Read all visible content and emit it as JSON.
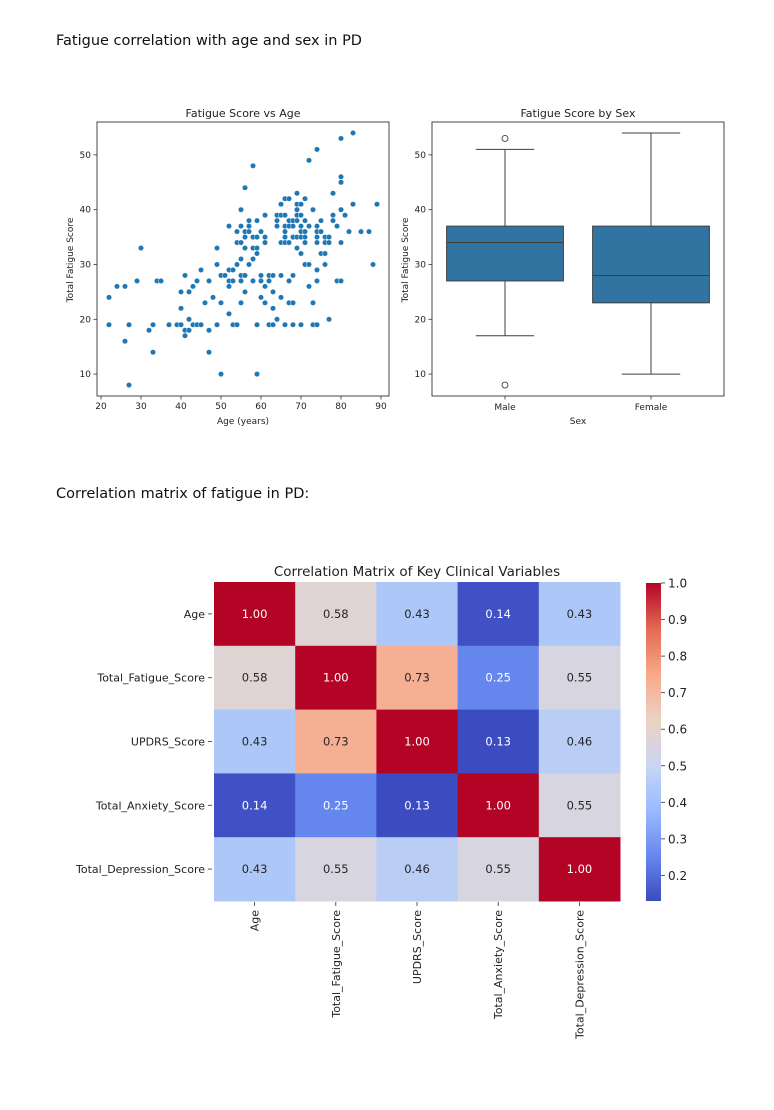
{
  "document": {
    "heading1": "Fatigue correlation with age and sex in PD",
    "heading2": "Correlation matrix of fatigue in PD:"
  },
  "chart_data": [
    {
      "type": "scatter",
      "title": "Fatigue Score vs Age",
      "xlabel": "Age (years)",
      "ylabel": "Total Fatigue Score",
      "xlim": [
        19,
        92
      ],
      "ylim": [
        6,
        56
      ],
      "xticks": [
        20,
        30,
        40,
        50,
        60,
        70,
        80,
        90
      ],
      "yticks": [
        10,
        20,
        30,
        40,
        50
      ],
      "color": "#1f77b4",
      "grid": false,
      "points": [
        [
          22,
          24
        ],
        [
          22,
          19
        ],
        [
          24,
          26
        ],
        [
          26,
          26
        ],
        [
          26,
          16
        ],
        [
          27,
          19
        ],
        [
          27,
          8
        ],
        [
          29,
          27
        ],
        [
          30,
          33
        ],
        [
          32,
          18
        ],
        [
          33,
          19
        ],
        [
          33,
          14
        ],
        [
          34,
          27
        ],
        [
          35,
          27
        ],
        [
          37,
          19
        ],
        [
          39,
          19
        ],
        [
          40,
          25
        ],
        [
          40,
          22
        ],
        [
          40,
          19
        ],
        [
          41,
          28
        ],
        [
          41,
          18
        ],
        [
          41,
          17
        ],
        [
          42,
          25
        ],
        [
          42,
          20
        ],
        [
          42,
          18
        ],
        [
          43,
          26
        ],
        [
          43,
          19
        ],
        [
          44,
          27
        ],
        [
          44,
          19
        ],
        [
          45,
          29
        ],
        [
          45,
          19
        ],
        [
          46,
          23
        ],
        [
          47,
          27
        ],
        [
          47,
          18
        ],
        [
          47,
          14
        ],
        [
          48,
          24
        ],
        [
          49,
          33
        ],
        [
          49,
          30
        ],
        [
          49,
          19
        ],
        [
          50,
          28
        ],
        [
          50,
          23
        ],
        [
          50,
          10
        ],
        [
          51,
          28
        ],
        [
          52,
          37
        ],
        [
          52,
          29
        ],
        [
          52,
          27
        ],
        [
          52,
          26
        ],
        [
          52,
          21
        ],
        [
          53,
          29
        ],
        [
          53,
          27
        ],
        [
          53,
          19
        ],
        [
          54,
          36
        ],
        [
          54,
          34
        ],
        [
          54,
          30
        ],
        [
          54,
          19
        ],
        [
          55,
          40
        ],
        [
          55,
          37
        ],
        [
          55,
          34
        ],
        [
          55,
          31
        ],
        [
          55,
          28
        ],
        [
          55,
          27
        ],
        [
          55,
          23
        ],
        [
          56,
          44
        ],
        [
          56,
          36
        ],
        [
          56,
          35
        ],
        [
          56,
          33
        ],
        [
          56,
          28
        ],
        [
          56,
          25
        ],
        [
          57,
          38
        ],
        [
          57,
          37
        ],
        [
          57,
          36
        ],
        [
          57,
          30
        ],
        [
          58,
          48
        ],
        [
          58,
          35
        ],
        [
          58,
          33
        ],
        [
          58,
          31
        ],
        [
          58,
          27
        ],
        [
          59,
          38
        ],
        [
          59,
          35
        ],
        [
          59,
          33
        ],
        [
          59,
          32
        ],
        [
          59,
          19
        ],
        [
          59,
          10
        ],
        [
          60,
          36
        ],
        [
          60,
          28
        ],
        [
          60,
          27
        ],
        [
          60,
          24
        ],
        [
          61,
          39
        ],
        [
          61,
          35
        ],
        [
          61,
          34
        ],
        [
          61,
          26
        ],
        [
          61,
          23
        ],
        [
          62,
          28
        ],
        [
          62,
          27
        ],
        [
          62,
          19
        ],
        [
          63,
          28
        ],
        [
          63,
          25
        ],
        [
          63,
          22
        ],
        [
          63,
          19
        ],
        [
          64,
          39
        ],
        [
          64,
          38
        ],
        [
          64,
          37
        ],
        [
          64,
          20
        ],
        [
          65,
          41
        ],
        [
          65,
          39
        ],
        [
          65,
          34
        ],
        [
          65,
          28
        ],
        [
          65,
          24
        ],
        [
          66,
          42
        ],
        [
          66,
          39
        ],
        [
          66,
          37
        ],
        [
          66,
          36
        ],
        [
          66,
          35
        ],
        [
          66,
          34
        ],
        [
          66,
          19
        ],
        [
          67,
          42
        ],
        [
          67,
          38
        ],
        [
          67,
          37
        ],
        [
          67,
          34
        ],
        [
          67,
          27
        ],
        [
          67,
          23
        ],
        [
          68,
          38
        ],
        [
          68,
          37
        ],
        [
          68,
          35
        ],
        [
          68,
          28
        ],
        [
          68,
          23
        ],
        [
          68,
          19
        ],
        [
          69,
          43
        ],
        [
          69,
          41
        ],
        [
          69,
          40
        ],
        [
          69,
          39
        ],
        [
          69,
          38
        ],
        [
          69,
          35
        ],
        [
          69,
          33
        ],
        [
          70,
          41
        ],
        [
          70,
          39
        ],
        [
          70,
          37
        ],
        [
          70,
          36
        ],
        [
          70,
          35
        ],
        [
          70,
          32
        ],
        [
          70,
          19
        ],
        [
          71,
          42
        ],
        [
          71,
          38
        ],
        [
          71,
          36
        ],
        [
          71,
          35
        ],
        [
          71,
          34
        ],
        [
          71,
          30
        ],
        [
          72,
          49
        ],
        [
          72,
          37
        ],
        [
          72,
          30
        ],
        [
          72,
          26
        ],
        [
          73,
          40
        ],
        [
          73,
          23
        ],
        [
          73,
          19
        ],
        [
          74,
          51
        ],
        [
          74,
          37
        ],
        [
          74,
          36
        ],
        [
          74,
          35
        ],
        [
          74,
          34
        ],
        [
          74,
          29
        ],
        [
          74,
          27
        ],
        [
          74,
          19
        ],
        [
          75,
          38
        ],
        [
          75,
          36
        ],
        [
          75,
          32
        ],
        [
          76,
          35
        ],
        [
          76,
          34
        ],
        [
          76,
          32
        ],
        [
          76,
          30
        ],
        [
          77,
          35
        ],
        [
          77,
          34
        ],
        [
          77,
          20
        ],
        [
          78,
          43
        ],
        [
          78,
          39
        ],
        [
          78,
          38
        ],
        [
          79,
          37
        ],
        [
          79,
          27
        ],
        [
          80,
          53
        ],
        [
          80,
          46
        ],
        [
          80,
          45
        ],
        [
          80,
          40
        ],
        [
          80,
          34
        ],
        [
          80,
          27
        ],
        [
          81,
          39
        ],
        [
          82,
          36
        ],
        [
          83,
          54
        ],
        [
          83,
          41
        ],
        [
          85,
          36
        ],
        [
          87,
          36
        ],
        [
          88,
          30
        ],
        [
          89,
          41
        ]
      ]
    },
    {
      "type": "box",
      "title": "Fatigue Score by Sex",
      "xlabel": "Sex",
      "ylabel": "Total Fatigue Score",
      "ylim": [
        6,
        56
      ],
      "yticks": [
        10,
        20,
        30,
        40,
        50
      ],
      "color": "#3274a1",
      "categories": [
        "Male",
        "Female"
      ],
      "boxes": [
        {
          "label": "Male",
          "whisker_low": 17,
          "q1": 27,
          "median": 34,
          "q3": 37,
          "whisker_high": 51,
          "outliers": [
            53,
            8
          ]
        },
        {
          "label": "Female",
          "whisker_low": 10,
          "q1": 23,
          "median": 28,
          "q3": 37,
          "whisker_high": 54,
          "outliers": []
        }
      ]
    },
    {
      "type": "heatmap",
      "title": "Correlation Matrix of Key Clinical Variables",
      "row_labels": [
        "Age",
        "Total_Fatigue_Score",
        "UPDRS_Score",
        "Total_Anxiety_Score",
        "Total_Depression_Score"
      ],
      "col_labels": [
        "Age",
        "Total_Fatigue_Score",
        "UPDRS_Score",
        "Total_Anxiety_Score",
        "Total_Depression_Score"
      ],
      "values": [
        [
          1.0,
          0.58,
          0.43,
          0.14,
          0.43
        ],
        [
          0.58,
          1.0,
          0.73,
          0.25,
          0.55
        ],
        [
          0.43,
          0.73,
          1.0,
          0.13,
          0.46
        ],
        [
          0.14,
          0.25,
          0.13,
          1.0,
          0.55
        ],
        [
          0.43,
          0.55,
          0.46,
          0.55,
          1.0
        ]
      ],
      "colormap": "coolwarm",
      "vmin": 0.13,
      "vmax": 1.0,
      "colorbar_ticks": [
        0.2,
        0.3,
        0.4,
        0.5,
        0.6,
        0.7,
        0.8,
        0.9,
        1.0
      ],
      "colorbar_tick_labels": [
        "0.2",
        "0.3",
        "0.4",
        "0.5",
        "0.6",
        "0.7",
        "0.8",
        "0.9",
        "1.0"
      ],
      "cmap_stops": [
        "#3b4cc0",
        "#6788ee",
        "#9abbff",
        "#c9d7f0",
        "#edd1c2",
        "#f7a889",
        "#e26952",
        "#b40426"
      ]
    }
  ]
}
